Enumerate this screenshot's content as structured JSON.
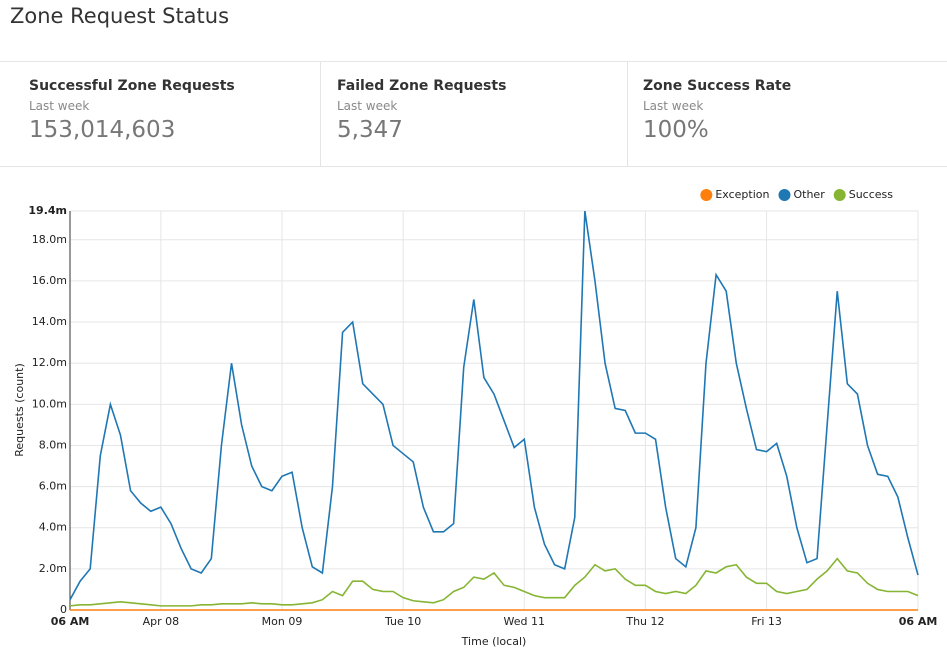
{
  "header": {
    "title": "Zone Request Status"
  },
  "kpis": [
    {
      "title": "Successful Zone Requests",
      "subtitle": "Last week",
      "value": "153,014,603"
    },
    {
      "title": "Failed Zone Requests",
      "subtitle": "Last week",
      "value": "5,347"
    },
    {
      "title": "Zone Success Rate",
      "subtitle": "Last week",
      "value": "100%"
    }
  ],
  "chart_data": {
    "type": "line",
    "y_label": "Requests (count)",
    "x_label": "Time (local)",
    "legend": "top-right",
    "grid": true,
    "xlim": [
      0,
      168
    ],
    "xticks": [
      {
        "value": 0,
        "label": "06 AM"
      },
      {
        "value": 18,
        "label": "Apr 08"
      },
      {
        "value": 42,
        "label": "Mon 09"
      },
      {
        "value": 66,
        "label": "Tue 10"
      },
      {
        "value": 90,
        "label": "Wed 11"
      },
      {
        "value": 114,
        "label": "Thu 12"
      },
      {
        "value": 138,
        "label": "Fri 13"
      },
      {
        "value": 168,
        "label": "06 AM"
      }
    ],
    "ylim": [
      0,
      19.4
    ],
    "yticks": [
      0,
      {
        "value": 2,
        "label": "2.0m"
      },
      {
        "value": 4,
        "label": "4.0m"
      },
      {
        "value": 6,
        "label": "6.0m"
      },
      {
        "value": 8,
        "label": "8.0m"
      },
      {
        "value": 10,
        "label": "10.0m"
      },
      {
        "value": 12,
        "label": "12.0m"
      },
      {
        "value": 14,
        "label": "14.0m"
      },
      {
        "value": 16,
        "label": "16.0m"
      },
      {
        "value": 18,
        "label": "18.0m"
      },
      {
        "value": 19.4,
        "label": "19.4m"
      }
    ],
    "x": [
      0,
      2,
      4,
      6,
      8,
      10,
      12,
      14,
      16,
      18,
      20,
      22,
      24,
      26,
      28,
      30,
      32,
      34,
      36,
      38,
      40,
      42,
      44,
      46,
      48,
      50,
      52,
      54,
      56,
      58,
      60,
      62,
      64,
      66,
      68,
      70,
      72,
      74,
      76,
      78,
      80,
      82,
      84,
      86,
      88,
      90,
      92,
      94,
      96,
      98,
      100,
      102,
      104,
      106,
      108,
      110,
      112,
      114,
      116,
      118,
      120,
      122,
      124,
      126,
      128,
      130,
      132,
      134,
      136,
      138,
      140,
      142,
      144,
      146,
      148,
      150,
      152,
      154,
      156,
      158,
      160,
      162,
      164,
      166,
      168
    ],
    "series": [
      {
        "name": "Exception",
        "color": "#ff7f0e",
        "values": [
          0,
          0,
          0,
          0,
          0,
          0,
          0,
          0,
          0,
          0,
          0,
          0,
          0,
          0,
          0,
          0,
          0,
          0,
          0,
          0,
          0,
          0,
          0,
          0,
          0,
          0,
          0,
          0,
          0,
          0,
          0,
          0,
          0,
          0,
          0,
          0,
          0,
          0,
          0,
          0,
          0,
          0,
          0,
          0,
          0,
          0,
          0,
          0,
          0,
          0,
          0,
          0,
          0,
          0,
          0,
          0,
          0,
          0,
          0,
          0,
          0,
          0,
          0,
          0,
          0,
          0,
          0,
          0,
          0,
          0,
          0,
          0,
          0,
          0,
          0,
          0,
          0,
          0,
          0,
          0,
          0,
          0,
          0,
          0,
          0
        ]
      },
      {
        "name": "Other",
        "color": "#1f77b4",
        "values": [
          0.5,
          1.4,
          2.0,
          7.5,
          10.0,
          8.5,
          5.8,
          5.2,
          4.8,
          5.0,
          4.2,
          3.0,
          2.0,
          1.8,
          2.5,
          8.0,
          12.0,
          9.0,
          7.0,
          6.0,
          5.8,
          6.5,
          6.7,
          4.0,
          2.1,
          1.8,
          6.0,
          13.5,
          14.0,
          11.0,
          10.5,
          10.0,
          8.0,
          7.6,
          7.2,
          5.0,
          3.8,
          3.8,
          4.2,
          11.8,
          15.1,
          11.3,
          10.5,
          9.2,
          7.9,
          8.3,
          5.0,
          3.2,
          2.2,
          2.0,
          4.5,
          19.4,
          16.0,
          12.0,
          9.8,
          9.7,
          8.6,
          8.6,
          8.3,
          5.0,
          2.5,
          2.1,
          4.0,
          12.0,
          16.3,
          15.5,
          12.0,
          9.8,
          7.8,
          7.7,
          8.1,
          6.5,
          4.0,
          2.3,
          2.5,
          9.0,
          15.5,
          11.0,
          10.5,
          8.0,
          6.6,
          6.5,
          5.5,
          3.5,
          1.7
        ]
      },
      {
        "name": "Success",
        "color": "#86b534",
        "values": [
          0.2,
          0.25,
          0.25,
          0.3,
          0.35,
          0.4,
          0.35,
          0.3,
          0.25,
          0.2,
          0.2,
          0.2,
          0.2,
          0.25,
          0.25,
          0.3,
          0.3,
          0.3,
          0.35,
          0.3,
          0.3,
          0.25,
          0.25,
          0.3,
          0.35,
          0.5,
          0.9,
          0.7,
          1.4,
          1.4,
          1.0,
          0.9,
          0.9,
          0.6,
          0.45,
          0.4,
          0.35,
          0.5,
          0.9,
          1.1,
          1.6,
          1.5,
          1.8,
          1.2,
          1.1,
          0.9,
          0.7,
          0.6,
          0.6,
          0.6,
          1.2,
          1.6,
          2.2,
          1.9,
          2.0,
          1.5,
          1.2,
          1.2,
          0.9,
          0.8,
          0.9,
          0.8,
          1.2,
          1.9,
          1.8,
          2.1,
          2.2,
          1.6,
          1.3,
          1.3,
          0.9,
          0.8,
          0.9,
          1.0,
          1.5,
          1.9,
          2.5,
          1.9,
          1.8,
          1.3,
          1.0,
          0.9,
          0.9,
          0.9,
          0.7
        ]
      }
    ]
  }
}
